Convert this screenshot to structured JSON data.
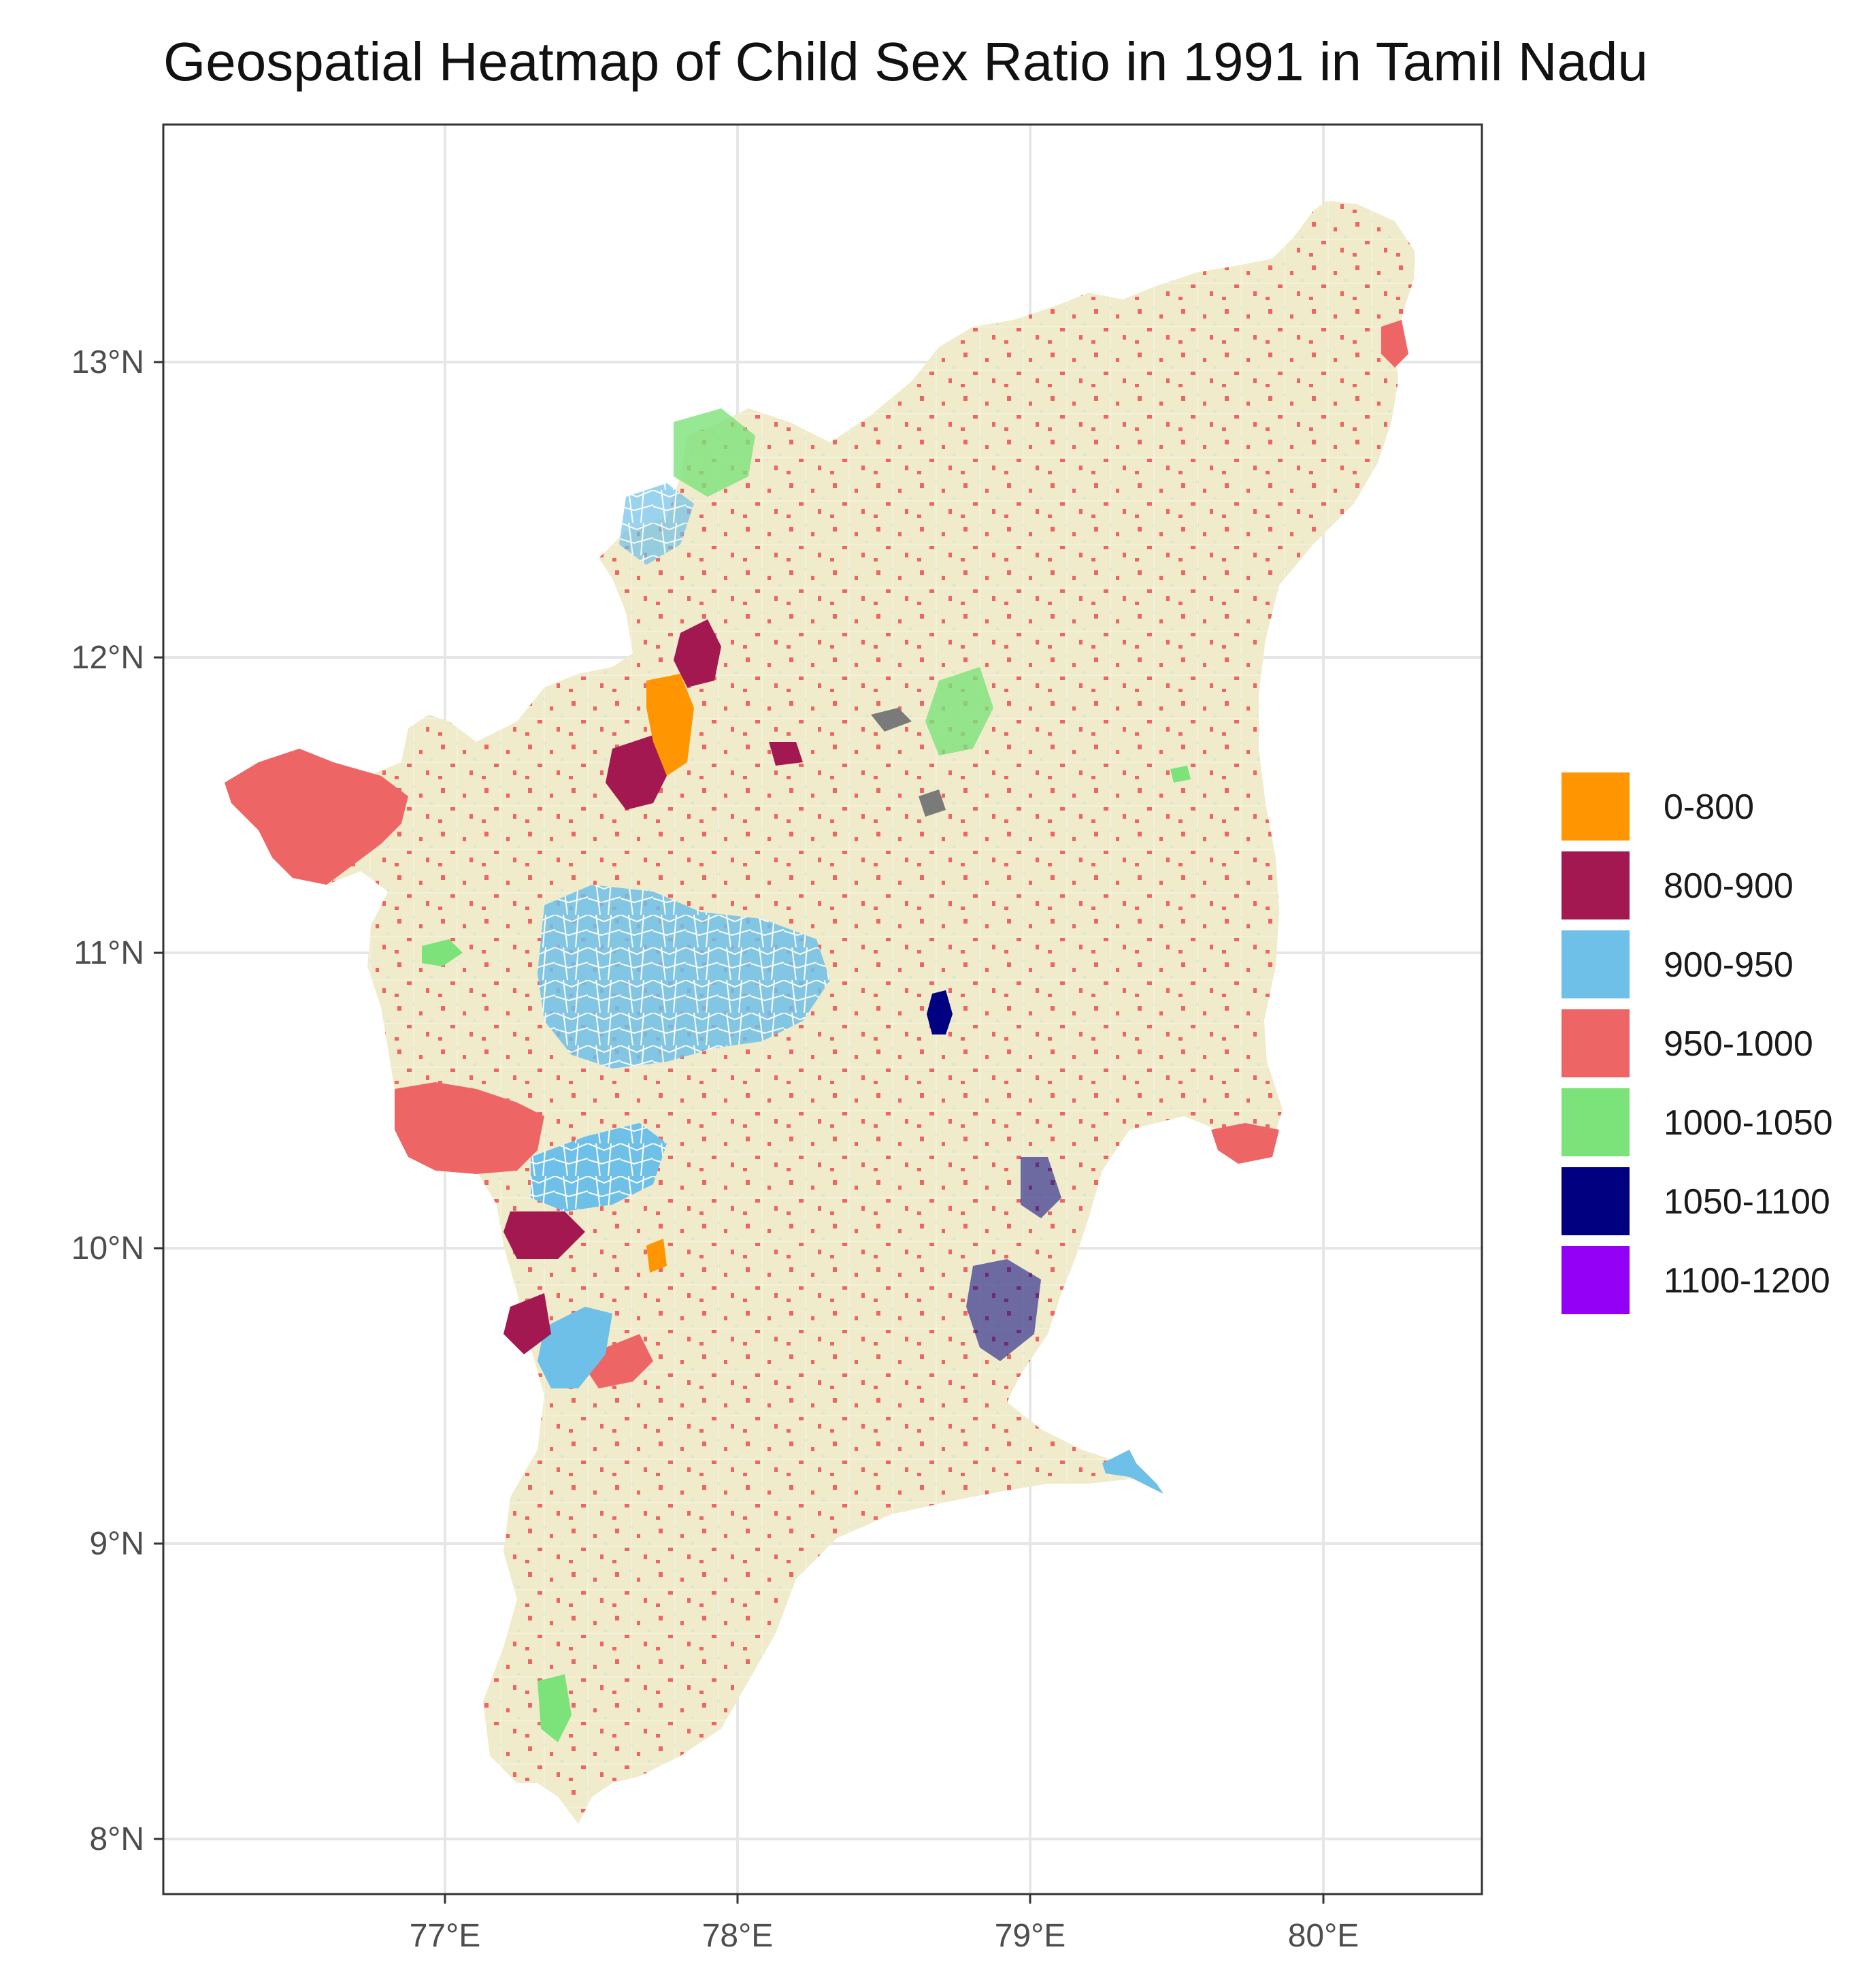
{
  "title": "Geospatial Heatmap of Child Sex Ratio in 1991 in Tamil Nadu",
  "axes": {
    "x_ticks": [
      "77°E",
      "78°E",
      "79°E",
      "80°E"
    ],
    "y_ticks": [
      "13°N",
      "12°N",
      "11°N",
      "10°N",
      "9°N",
      "8°N"
    ]
  },
  "legend": {
    "items": [
      {
        "label": "0-800",
        "color": "#ff9500"
      },
      {
        "label": "800-900",
        "color": "#a31850"
      },
      {
        "label": "900-950",
        "color": "#6ec0e8"
      },
      {
        "label": "950-1000",
        "color": "#ee6566"
      },
      {
        "label": "1000-1050",
        "color": "#7ce27a"
      },
      {
        "label": "1050-1100",
        "color": "#000080"
      },
      {
        "label": "1100-1200",
        "color": "#9400f5"
      }
    ]
  },
  "map_colors": {
    "base": "#f0ebca",
    "missing": "#7a7a7a"
  }
}
